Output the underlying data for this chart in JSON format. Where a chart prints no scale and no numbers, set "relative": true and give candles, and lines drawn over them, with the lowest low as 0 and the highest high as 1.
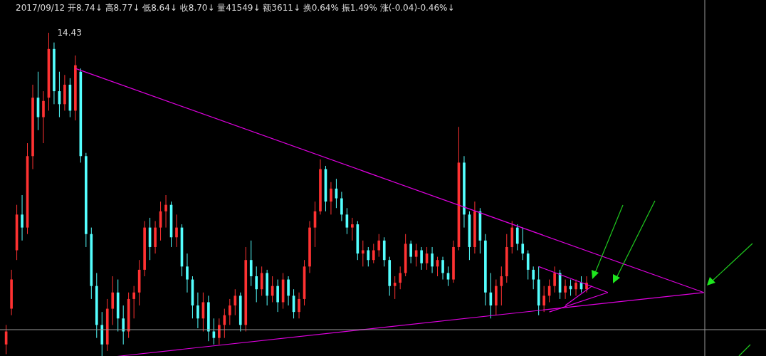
{
  "chart_data": {
    "type": "candlestick",
    "relative": true,
    "annotations": [
      "2017/09/12 开8.74↓ 高8.77↓ 低8.64↓ 收8.70↓ 量41549↓ 额3611↓ 换0.64% 振1.49% 涨(-0.04)-0.46%↓",
      "14.43"
    ],
    "categories": [
      null,
      null,
      null,
      null,
      null,
      null,
      null,
      null,
      null,
      null,
      null,
      null,
      null,
      null,
      null,
      null,
      null,
      null,
      null,
      null,
      null,
      null,
      null,
      null,
      null,
      null,
      null,
      null,
      null,
      null,
      null,
      null,
      null,
      null,
      null,
      null,
      null,
      null,
      null,
      null,
      null,
      null,
      null,
      null,
      null,
      null,
      null,
      null,
      null,
      null,
      null,
      null,
      null,
      null,
      null,
      null,
      null,
      null,
      null,
      null,
      null,
      null,
      null,
      null,
      null,
      null,
      null,
      null,
      null,
      null,
      null,
      null,
      null,
      null,
      null,
      null,
      null,
      null,
      null,
      null,
      null,
      null,
      null,
      null,
      null,
      null,
      null,
      null,
      null,
      null,
      null,
      null,
      null,
      null,
      null,
      null,
      null,
      null,
      null,
      null,
      null,
      null,
      null,
      null,
      null,
      null,
      null,
      null,
      null,
      null,
      null,
      null,
      null,
      null,
      null,
      null,
      null,
      null,
      null,
      null,
      null,
      null,
      null,
      null,
      null,
      null,
      null,
      null,
      null,
      null,
      null,
      null,
      null,
      null,
      null,
      null,
      null,
      null,
      null,
      null,
      null,
      null
    ],
    "ohlc": [
      [
        0.04,
        0.1,
        0.01,
        0.08
      ],
      [
        0.15,
        0.27,
        0.13,
        0.24
      ],
      [
        0.33,
        0.47,
        0.3,
        0.44
      ],
      [
        0.44,
        0.5,
        0.36,
        0.4
      ],
      [
        0.4,
        0.66,
        0.38,
        0.62
      ],
      [
        0.62,
        0.84,
        0.58,
        0.8
      ],
      [
        0.8,
        0.88,
        0.7,
        0.74
      ],
      [
        0.74,
        0.82,
        0.66,
        0.79
      ],
      [
        0.8,
        1,
        0.76,
        0.95
      ],
      [
        0.95,
        0.97,
        0.78,
        0.82
      ],
      [
        0.82,
        0.88,
        0.74,
        0.78
      ],
      [
        0.78,
        0.87,
        0.76,
        0.84
      ],
      [
        0.84,
        0.86,
        0.74,
        0.76
      ],
      [
        0.76,
        0.93,
        0.73,
        0.9
      ],
      [
        0.88,
        0.89,
        0.6,
        0.62
      ],
      [
        0.62,
        0.63,
        0.34,
        0.38
      ],
      [
        0.38,
        0.4,
        0.18,
        0.22
      ],
      [
        0.22,
        0.26,
        0.06,
        0.1
      ],
      [
        0.1,
        0.14,
        0,
        0.04
      ],
      [
        0.04,
        0.18,
        0.02,
        0.15
      ],
      [
        0.15,
        0.25,
        0.1,
        0.2
      ],
      [
        0.2,
        0.24,
        0.08,
        0.12
      ],
      [
        0.12,
        0.16,
        0.04,
        0.08
      ],
      [
        0.08,
        0.2,
        0.06,
        0.18
      ],
      [
        0.18,
        0.22,
        0.12,
        0.2
      ],
      [
        0.2,
        0.3,
        0.16,
        0.27
      ],
      [
        0.27,
        0.42,
        0.25,
        0.4
      ],
      [
        0.4,
        0.43,
        0.3,
        0.34
      ],
      [
        0.34,
        0.42,
        0.32,
        0.4
      ],
      [
        0.4,
        0.48,
        0.36,
        0.45
      ],
      [
        0.45,
        0.5,
        0.4,
        0.47
      ],
      [
        0.47,
        0.48,
        0.34,
        0.37
      ],
      [
        0.37,
        0.44,
        0.34,
        0.4
      ],
      [
        0.4,
        0.41,
        0.25,
        0.28
      ],
      [
        0.28,
        0.32,
        0.2,
        0.24
      ],
      [
        0.24,
        0.25,
        0.12,
        0.16
      ],
      [
        0.16,
        0.2,
        0.09,
        0.12
      ],
      [
        0.12,
        0.2,
        0.08,
        0.17
      ],
      [
        0.17,
        0.19,
        0.05,
        0.08
      ],
      [
        0.08,
        0.12,
        0.04,
        0.06
      ],
      [
        0.06,
        0.12,
        0.04,
        0.1
      ],
      [
        0.1,
        0.15,
        0.06,
        0.13
      ],
      [
        0.13,
        0.18,
        0.1,
        0.16
      ],
      [
        0.16,
        0.21,
        0.13,
        0.19
      ],
      [
        0.19,
        0.2,
        0.08,
        0.1
      ],
      [
        0.1,
        0.34,
        0.08,
        0.3
      ],
      [
        0.3,
        0.36,
        0.22,
        0.25
      ],
      [
        0.25,
        0.28,
        0.17,
        0.21
      ],
      [
        0.21,
        0.28,
        0.19,
        0.26
      ],
      [
        0.26,
        0.27,
        0.16,
        0.19
      ],
      [
        0.19,
        0.25,
        0.17,
        0.22
      ],
      [
        0.22,
        0.24,
        0.14,
        0.17
      ],
      [
        0.17,
        0.26,
        0.15,
        0.24
      ],
      [
        0.24,
        0.25,
        0.16,
        0.19
      ],
      [
        0.19,
        0.21,
        0.12,
        0.14
      ],
      [
        0.14,
        0.2,
        0.12,
        0.18
      ],
      [
        0.18,
        0.3,
        0.16,
        0.28
      ],
      [
        0.28,
        0.42,
        0.26,
        0.4
      ],
      [
        0.4,
        0.48,
        0.34,
        0.45
      ],
      [
        0.45,
        0.61,
        0.44,
        0.58
      ],
      [
        0.58,
        0.59,
        0.45,
        0.48
      ],
      [
        0.48,
        0.54,
        0.44,
        0.52
      ],
      [
        0.52,
        0.55,
        0.46,
        0.49
      ],
      [
        0.49,
        0.51,
        0.42,
        0.44
      ],
      [
        0.44,
        0.46,
        0.38,
        0.4
      ],
      [
        0.4,
        0.43,
        0.36,
        0.41
      ],
      [
        0.41,
        0.42,
        0.3,
        0.32
      ],
      [
        0.32,
        0.36,
        0.28,
        0.33
      ],
      [
        0.33,
        0.34,
        0.28,
        0.3
      ],
      [
        0.3,
        0.35,
        0.29,
        0.33
      ],
      [
        0.33,
        0.38,
        0.31,
        0.36
      ],
      [
        0.36,
        0.37,
        0.28,
        0.3
      ],
      [
        0.3,
        0.31,
        0.19,
        0.22
      ],
      [
        0.22,
        0.25,
        0.18,
        0.23
      ],
      [
        0.23,
        0.28,
        0.21,
        0.26
      ],
      [
        0.26,
        0.38,
        0.25,
        0.35
      ],
      [
        0.35,
        0.36,
        0.29,
        0.31
      ],
      [
        0.31,
        0.35,
        0.28,
        0.33
      ],
      [
        0.33,
        0.34,
        0.27,
        0.29
      ],
      [
        0.29,
        0.34,
        0.27,
        0.32
      ],
      [
        0.32,
        0.34,
        0.26,
        0.28
      ],
      [
        0.28,
        0.31,
        0.25,
        0.3
      ],
      [
        0.3,
        0.31,
        0.24,
        0.26
      ],
      [
        0.26,
        0.28,
        0.22,
        0.24
      ],
      [
        0.24,
        0.36,
        0.23,
        0.34
      ],
      [
        0.34,
        0.71,
        0.33,
        0.6
      ],
      [
        0.6,
        0.62,
        0.4,
        0.44
      ],
      [
        0.44,
        0.45,
        0.3,
        0.34
      ],
      [
        0.34,
        0.48,
        0.32,
        0.45
      ],
      [
        0.45,
        0.46,
        0.32,
        0.36
      ],
      [
        0.36,
        0.38,
        0.16,
        0.2
      ],
      [
        0.2,
        0.26,
        0.12,
        0.16
      ],
      [
        0.16,
        0.24,
        0.13,
        0.22
      ],
      [
        0.22,
        0.28,
        0.16,
        0.25
      ],
      [
        0.25,
        0.38,
        0.23,
        0.34
      ],
      [
        0.34,
        0.42,
        0.32,
        0.4
      ],
      [
        0.4,
        0.41,
        0.33,
        0.35
      ],
      [
        0.35,
        0.4,
        0.3,
        0.32
      ],
      [
        0.32,
        0.33,
        0.24,
        0.27
      ],
      [
        0.27,
        0.28,
        0.21,
        0.24
      ],
      [
        0.24,
        0.28,
        0.13,
        0.16
      ],
      [
        0.16,
        0.22,
        0.14,
        0.19
      ],
      [
        0.19,
        0.24,
        0.17,
        0.22
      ],
      [
        0.22,
        0.28,
        0.2,
        0.26
      ],
      [
        0.26,
        0.27,
        0.18,
        0.2
      ],
      [
        0.2,
        0.24,
        0.18,
        0.22
      ],
      [
        0.22,
        0.24,
        0.19,
        0.21
      ],
      [
        0.21,
        0.24,
        0.19,
        0.23
      ],
      [
        0.23,
        0.25,
        0.2,
        0.21
      ],
      [
        0.21,
        0.25,
        0.2,
        0.23
      ],
      null,
      null,
      null,
      null,
      null,
      null,
      null,
      null,
      null,
      null,
      null,
      null,
      null,
      null,
      null,
      null,
      null,
      null,
      null,
      null,
      null,
      null,
      null,
      null,
      null,
      null,
      null,
      null,
      null,
      null,
      null,
      null
    ],
    "colors": [
      "#ff3232",
      "#ff3232",
      "#ff3232",
      "#54ffff",
      "#ff3232",
      "#ff3232",
      "#54ffff",
      "#ff3232",
      "#ff3232",
      "#54ffff",
      "#54ffff",
      "#ff3232",
      "#54ffff",
      "#ff3232",
      "#54ffff",
      "#54ffff",
      "#54ffff",
      "#54ffff",
      "#54ffff",
      "#ff3232",
      "#ff3232",
      "#54ffff",
      "#54ffff",
      "#ff3232",
      "#ff3232",
      "#ff3232",
      "#ff3232",
      "#54ffff",
      "#ff3232",
      "#ff3232",
      "#ff3232",
      "#54ffff",
      "#ff3232",
      "#54ffff",
      "#54ffff",
      "#54ffff",
      "#54ffff",
      "#ff3232",
      "#54ffff",
      "#54ffff",
      "#ff3232",
      "#ff3232",
      "#ff3232",
      "#ff3232",
      "#54ffff",
      "#ff3232",
      "#54ffff",
      "#54ffff",
      "#ff3232",
      "#54ffff",
      "#ff3232",
      "#54ffff",
      "#ff3232",
      "#54ffff",
      "#54ffff",
      "#ff3232",
      "#ff3232",
      "#ff3232",
      "#ff3232",
      "#ff3232",
      "#54ffff",
      "#ff3232",
      "#54ffff",
      "#54ffff",
      "#54ffff",
      "#ff3232",
      "#54ffff",
      "#ff3232",
      "#54ffff",
      "#ff3232",
      "#ff3232",
      "#54ffff",
      "#54ffff",
      "#ff3232",
      "#ff3232",
      "#ff3232",
      "#54ffff",
      "#ff3232",
      "#54ffff",
      "#ff3232",
      "#54ffff",
      "#ff3232",
      "#54ffff",
      "#54ffff",
      "#ff3232",
      "#ff3232",
      "#54ffff",
      "#54ffff",
      "#ff3232",
      "#54ffff",
      "#54ffff",
      "#54ffff",
      "#ff3232",
      "#ff3232",
      "#ff3232",
      "#ff3232",
      "#54ffff",
      "#54ffff",
      "#54ffff",
      "#54ffff",
      "#54ffff",
      "#ff3232",
      "#ff3232",
      "#ff3232",
      "#54ffff",
      "#ff3232",
      "#54ffff",
      "#ff3232",
      "#54ffff",
      "#ff3232",
      null,
      null,
      null,
      null,
      null,
      null,
      null,
      null,
      null,
      null,
      null,
      null,
      null,
      null,
      null,
      null,
      null,
      null,
      null,
      null,
      null,
      null,
      null,
      null,
      null,
      null,
      null,
      null,
      null,
      null,
      null,
      null
    ],
    "series": [
      {
        "type": "line",
        "color": "#e000e0",
        "values": [
          null,
          null,
          null,
          null,
          null,
          null,
          null,
          null,
          null,
          null,
          null,
          null,
          null,
          0.89,
          null,
          null,
          null,
          null,
          null,
          null,
          null,
          null,
          null,
          null,
          null,
          null,
          null,
          null,
          null,
          null,
          null,
          null,
          null,
          null,
          null,
          null,
          null,
          null,
          null,
          null,
          null,
          null,
          null,
          null,
          null,
          null,
          null,
          null,
          null,
          null,
          null,
          null,
          null,
          null,
          null,
          null,
          null,
          null,
          null,
          null,
          null,
          null,
          null,
          null,
          null,
          null,
          null,
          null,
          null,
          null,
          null,
          null,
          null,
          null,
          null,
          null,
          null,
          null,
          null,
          null,
          null,
          null,
          null,
          null,
          null,
          null,
          null,
          null,
          null,
          null,
          null,
          null,
          null,
          null,
          null,
          null,
          null,
          null,
          null,
          null,
          null,
          null,
          null,
          null,
          null,
          null,
          null,
          null,
          null,
          null,
          null,
          null,
          null,
          null,
          null,
          null,
          null,
          null,
          null,
          null,
          null,
          null,
          null,
          null,
          null,
          null,
          null,
          null,
          null,
          null,
          null,
          0.2,
          null,
          null,
          null,
          null,
          null,
          null,
          null,
          null,
          null,
          null
        ]
      },
      {
        "type": "line",
        "color": "#e000e0",
        "values": [
          null,
          null,
          null,
          null,
          null,
          null,
          null,
          null,
          null,
          null,
          null,
          null,
          null,
          null,
          null,
          null,
          null,
          null,
          null,
          0,
          null,
          null,
          null,
          null,
          null,
          null,
          null,
          null,
          null,
          null,
          null,
          null,
          null,
          null,
          null,
          null,
          null,
          null,
          null,
          null,
          null,
          null,
          null,
          null,
          null,
          null,
          null,
          null,
          null,
          null,
          null,
          null,
          null,
          null,
          null,
          null,
          null,
          null,
          null,
          null,
          null,
          null,
          null,
          null,
          null,
          null,
          null,
          null,
          null,
          null,
          null,
          null,
          null,
          null,
          null,
          null,
          null,
          null,
          null,
          null,
          null,
          null,
          null,
          null,
          null,
          null,
          null,
          null,
          null,
          null,
          null,
          null,
          null,
          null,
          null,
          null,
          null,
          null,
          null,
          null,
          null,
          null,
          null,
          null,
          null,
          null,
          null,
          null,
          null,
          null,
          null,
          null,
          null,
          null,
          null,
          null,
          null,
          null,
          null,
          null,
          null,
          null,
          null,
          null,
          null,
          null,
          null,
          null,
          null,
          null,
          null,
          0.2,
          null,
          null,
          null,
          null,
          null,
          null,
          null,
          null,
          null,
          null
        ]
      },
      {
        "type": "line",
        "color": "#e000e0",
        "values": [
          null,
          null,
          null,
          null,
          null,
          null,
          null,
          null,
          null,
          null,
          null,
          null,
          null,
          null,
          null,
          null,
          null,
          null,
          null,
          null,
          null,
          null,
          null,
          null,
          null,
          null,
          null,
          null,
          null,
          null,
          null,
          null,
          null,
          null,
          null,
          null,
          null,
          null,
          null,
          null,
          null,
          null,
          null,
          null,
          null,
          null,
          null,
          null,
          null,
          null,
          null,
          null,
          null,
          null,
          null,
          null,
          null,
          null,
          null,
          null,
          null,
          null,
          null,
          null,
          null,
          null,
          null,
          null,
          null,
          null,
          null,
          null,
          null,
          null,
          null,
          null,
          null,
          null,
          null,
          null,
          null,
          null,
          null,
          null,
          null,
          null,
          null,
          null,
          null,
          null,
          null,
          null,
          null,
          null,
          null,
          null,
          null,
          null,
          null,
          null,
          0.28,
          null,
          null,
          null,
          null,
          null,
          null,
          null,
          null,
          null,
          null,
          null,
          null,
          0.2,
          null,
          null,
          null,
          null,
          null,
          null,
          null,
          null,
          null,
          null,
          null,
          null,
          null,
          null,
          null,
          null,
          null,
          null,
          null,
          null,
          null,
          null,
          null,
          null,
          null,
          null,
          null,
          null
        ]
      },
      {
        "type": "line",
        "color": "#e000e0",
        "values": [
          null,
          null,
          null,
          null,
          null,
          null,
          null,
          null,
          null,
          null,
          null,
          null,
          null,
          null,
          null,
          null,
          null,
          null,
          null,
          null,
          null,
          null,
          null,
          null,
          null,
          null,
          null,
          null,
          null,
          null,
          null,
          null,
          null,
          null,
          null,
          null,
          null,
          null,
          null,
          null,
          null,
          null,
          null,
          null,
          null,
          null,
          null,
          null,
          null,
          null,
          null,
          null,
          null,
          null,
          null,
          null,
          null,
          null,
          null,
          null,
          null,
          null,
          null,
          null,
          null,
          null,
          null,
          null,
          null,
          null,
          null,
          null,
          null,
          null,
          null,
          null,
          null,
          null,
          null,
          null,
          null,
          null,
          null,
          null,
          null,
          null,
          null,
          null,
          null,
          null,
          null,
          null,
          null,
          null,
          null,
          null,
          null,
          null,
          null,
          null,
          null,
          null,
          0.14,
          null,
          null,
          null,
          null,
          null,
          null,
          null,
          null,
          null,
          null,
          0.2,
          null,
          null,
          null,
          null,
          null,
          null,
          null,
          null,
          null,
          null,
          null,
          null,
          null,
          null,
          null,
          null,
          null,
          null,
          null,
          null,
          null,
          null,
          null,
          null,
          null,
          null,
          null,
          null
        ]
      },
      {
        "type": "line",
        "color": "#e000e0",
        "values": [
          null,
          null,
          null,
          null,
          null,
          null,
          null,
          null,
          null,
          null,
          null,
          null,
          null,
          null,
          null,
          null,
          null,
          null,
          null,
          null,
          null,
          null,
          null,
          null,
          null,
          null,
          null,
          null,
          null,
          null,
          null,
          null,
          null,
          null,
          null,
          null,
          null,
          null,
          null,
          null,
          null,
          null,
          null,
          null,
          null,
          null,
          null,
          null,
          null,
          null,
          null,
          null,
          null,
          null,
          null,
          null,
          null,
          null,
          null,
          null,
          null,
          null,
          null,
          null,
          null,
          null,
          null,
          null,
          null,
          null,
          null,
          null,
          null,
          null,
          null,
          null,
          null,
          null,
          null,
          null,
          null,
          null,
          null,
          null,
          null,
          null,
          null,
          null,
          null,
          null,
          null,
          null,
          null,
          null,
          null,
          null,
          null,
          null,
          null,
          null,
          null,
          null,
          null,
          null,
          null,
          0.16,
          null,
          null,
          null,
          null,
          0.22,
          null,
          null,
          null,
          null,
          null,
          null,
          null,
          null,
          null,
          null,
          null,
          null,
          null,
          null,
          null,
          null,
          null,
          null,
          null,
          null,
          null,
          null,
          null,
          null,
          null,
          null,
          null,
          null,
          null,
          null,
          null
        ]
      }
    ]
  }
}
